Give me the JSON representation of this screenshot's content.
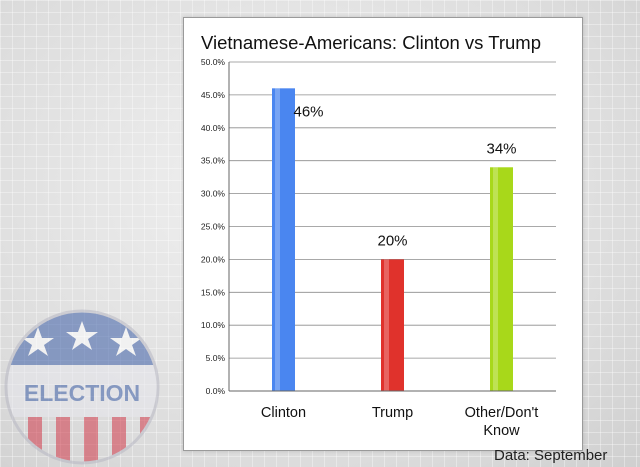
{
  "chart_data": {
    "type": "bar",
    "title": "Vietnamese-Americans: Clinton vs Trump",
    "categories": [
      "Clinton",
      "Trump",
      "Other/Don't Know"
    ],
    "values": [
      46,
      20,
      34
    ],
    "data_labels": [
      "46%",
      "20%",
      "34%"
    ],
    "y_ticks": [
      "0.0%",
      "5.0%",
      "10.0%",
      "15.0%",
      "20.0%",
      "25.0%",
      "30.0%",
      "35.0%",
      "40.0%",
      "45.0%",
      "50.0%"
    ],
    "ylim": [
      0,
      50
    ],
    "grid": true,
    "legend": "none",
    "colors": [
      "#4a86f0",
      "#e0322c",
      "#a8d81a"
    ]
  },
  "badge": {
    "text": "ELECTION"
  },
  "source_note": "Data: September"
}
